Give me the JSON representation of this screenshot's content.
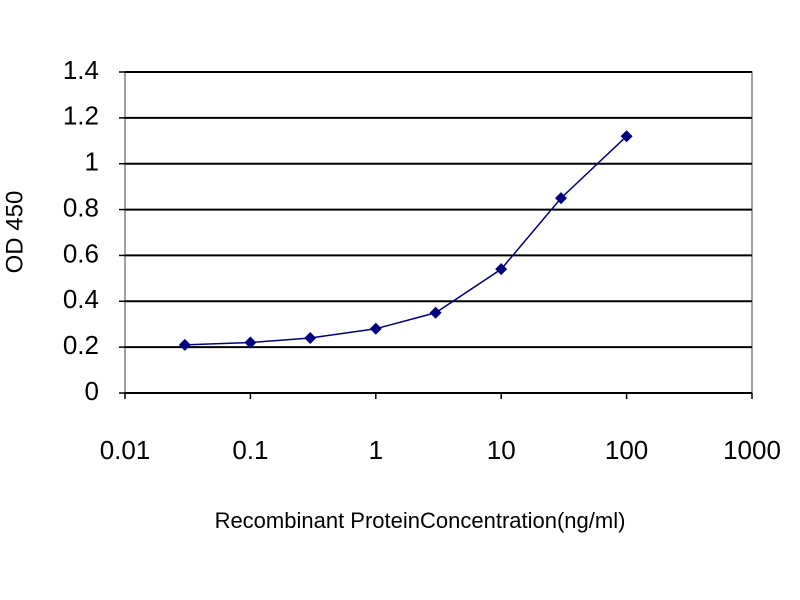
{
  "chart_data": {
    "type": "line",
    "xlabel": "Recombinant ProteinConcentration(ng/ml)",
    "ylabel": "OD 450",
    "x": [
      0.03,
      0.1,
      0.3,
      1,
      3,
      10,
      30,
      100
    ],
    "series": [
      {
        "color": "#000080",
        "values": [
          0.21,
          0.22,
          0.24,
          0.28,
          0.35,
          0.54,
          0.85,
          1.12
        ]
      }
    ],
    "xscale": "log",
    "xlim": [
      0.01,
      1000
    ],
    "xticks": [
      0.01,
      0.1,
      1,
      10,
      100,
      1000
    ],
    "ylim": [
      0,
      1.4
    ],
    "yticks": [
      0,
      0.2,
      0.4,
      0.6,
      0.8,
      1,
      1.2,
      1.4
    ],
    "grid": true
  }
}
